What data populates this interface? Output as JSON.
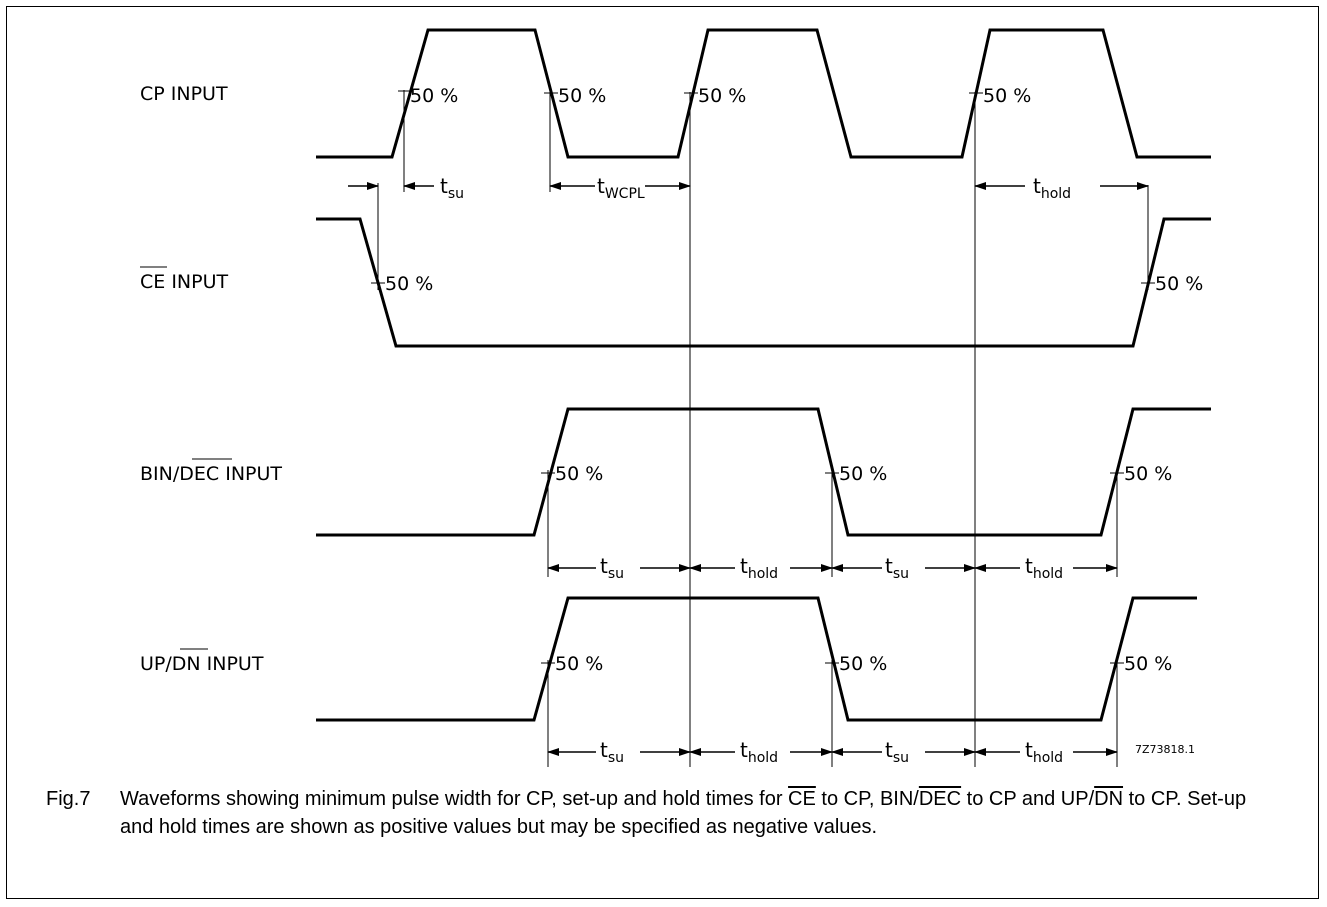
{
  "signals": {
    "cp": "CP  INPUT",
    "ce_bar": "CE",
    "ce_rest": "  INPUT",
    "bin_pre": "BIN/",
    "bin_bar": "DEC",
    "bin_rest": "  INPUT",
    "up_pre": "UP/",
    "up_bar": "DN",
    "up_rest": "  INPUT"
  },
  "threshold": "50 %",
  "timing": {
    "t": "t",
    "su": "su",
    "hold": "hold",
    "wcpl": "WCPL"
  },
  "code": "7Z73818.1",
  "caption": {
    "fig": "Fig.7",
    "p1": "Waveforms showing minimum pulse width for CP, set-up and hold times for ",
    "ce": "CE",
    "p2": " to CP, BIN/",
    "dec": "DEC",
    "p3": " to CP and UP/",
    "dn": "DN",
    "p4": " to CP. Set-up and hold times are shown as positive values but may be specified as negative values."
  }
}
